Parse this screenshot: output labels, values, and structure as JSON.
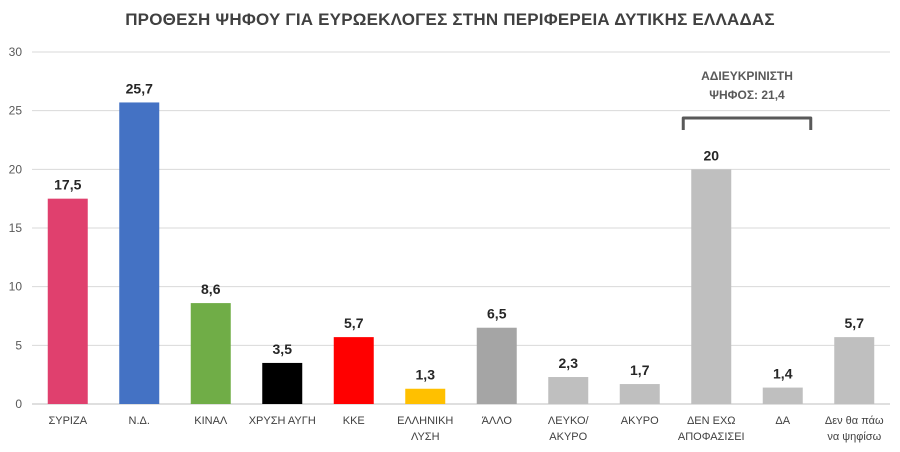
{
  "chart_data": {
    "type": "bar",
    "title": "ΠΡΟΘΕΣΗ ΨΗΦΟΥ ΓΙΑ ΕΥΡΩΕΚΛΟΓΕΣ ΣΤΗΝ ΠΕΡΙΦΕΡΕΙΑ ΔΥΤΙΚΗΣ ΕΛΛΑΔΑΣ",
    "xlabel": "",
    "ylabel": "",
    "ylim": [
      0,
      30
    ],
    "yticks": [
      "0",
      "5",
      "10",
      "15",
      "20",
      "25",
      "30"
    ],
    "grid": true,
    "categories": [
      [
        "ΣΥΡΙΖΑ"
      ],
      [
        "Ν.Δ."
      ],
      [
        "ΚΙΝΑΛ"
      ],
      [
        "ΧΡΥΣΗ ΑΥΓΗ"
      ],
      [
        "ΚΚΕ"
      ],
      [
        "ΕΛΛΗΝΙΚΗ",
        "ΛΥΣΗ"
      ],
      [
        "ΆΛΛΟ"
      ],
      [
        "ΛΕΥΚΟ/",
        "ΑΚΥΡΟ"
      ],
      [
        "ΑΚΥΡΟ"
      ],
      [
        "ΔΕΝ ΕΧΩ",
        "ΑΠΟΦΑΣΙΣΕΙ"
      ],
      [
        "ΔΑ"
      ],
      [
        "Δεν θα πάω",
        "να ψηφίσω"
      ]
    ],
    "values": [
      17.5,
      25.7,
      8.6,
      3.5,
      5.7,
      1.3,
      6.5,
      2.3,
      1.7,
      20,
      1.4,
      5.7
    ],
    "value_labels": [
      "17,5",
      "25,7",
      "8,6",
      "3,5",
      "5,7",
      "1,3",
      "6,5",
      "2,3",
      "1,7",
      "20",
      "1,4",
      "5,7"
    ],
    "colors": [
      "#e0406e",
      "#4472c4",
      "#70ad47",
      "#000000",
      "#ff0000",
      "#ffc000",
      "#a5a5a5",
      "#bfbfbf",
      "#bfbfbf",
      "#bfbfbf",
      "#bfbfbf",
      "#bfbfbf"
    ],
    "annotation": {
      "lines": [
        "ΑΔΙΕΥΚΡΙΝΙΣΤΗ",
        "ΨΗΦΟΣ: 21,4"
      ],
      "spans_categories": [
        9,
        10
      ]
    }
  }
}
